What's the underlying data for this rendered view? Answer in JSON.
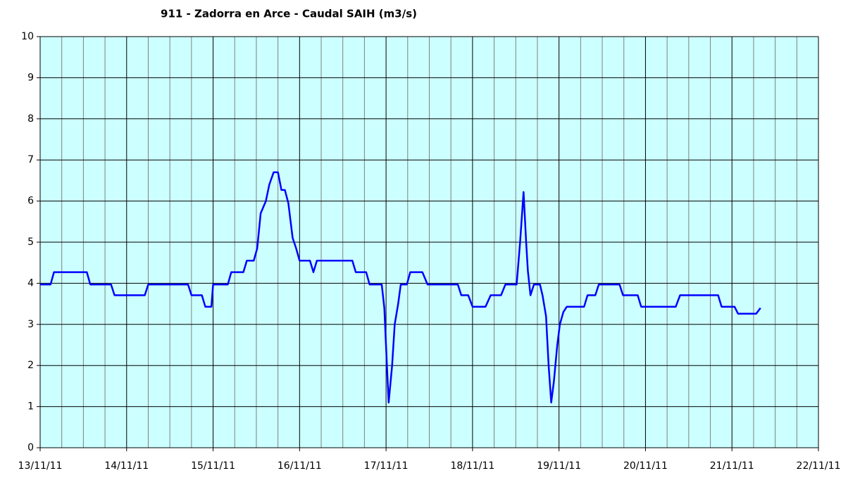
{
  "chart_data": {
    "type": "line",
    "title": "911 - Zadorra en Arce - Caudal SAIH (m3/s)",
    "xlim": [
      0,
      9
    ],
    "xticks": [
      {
        "value": 0,
        "label": "13/11/11"
      },
      {
        "value": 1,
        "label": "14/11/11"
      },
      {
        "value": 2,
        "label": "15/11/11"
      },
      {
        "value": 3,
        "label": "16/11/11"
      },
      {
        "value": 4,
        "label": "17/11/11"
      },
      {
        "value": 5,
        "label": "18/11/11"
      },
      {
        "value": 6,
        "label": "19/11/11"
      },
      {
        "value": 7,
        "label": "20/11/11"
      },
      {
        "value": 8,
        "label": "21/11/11"
      },
      {
        "value": 9,
        "label": "22/11/11"
      }
    ],
    "ylim": [
      0,
      10
    ],
    "yticks": [
      0,
      1,
      2,
      3,
      4,
      5,
      6,
      7,
      8,
      9,
      10
    ],
    "grid": true,
    "background": "#ccffff",
    "series": [
      {
        "color": "#0000ff",
        "x": [
          0,
          0.12,
          0.16,
          0.54,
          0.58,
          0.82,
          0.86,
          1.21,
          1.25,
          1.71,
          1.75,
          1.87,
          1.91,
          1.98,
          2.0,
          2.17,
          2.21,
          2.35,
          2.39,
          2.47,
          2.51,
          2.55,
          2.61,
          2.65,
          2.7,
          2.75,
          2.79,
          2.83,
          2.87,
          2.92,
          2.96,
          3.0,
          3.12,
          3.16,
          3.2,
          3.61,
          3.65,
          3.77,
          3.81,
          3.95,
          3.98,
          4.01,
          4.03,
          4.07,
          4.1,
          4.14,
          4.17,
          4.24,
          4.28,
          4.42,
          4.48,
          4.83,
          4.87,
          4.95,
          5.0,
          5.15,
          5.21,
          5.33,
          5.38,
          5.51,
          5.55,
          5.59,
          5.62,
          5.64,
          5.67,
          5.71,
          5.78,
          5.81,
          5.85,
          5.88,
          5.91,
          5.94,
          5.98,
          6.01,
          6.05,
          6.09,
          6.29,
          6.33,
          6.42,
          6.46,
          6.7,
          6.74,
          6.91,
          6.95,
          7.35,
          7.4,
          7.84,
          7.88,
          8.03,
          8.07,
          8.28,
          8.33
        ],
        "values": [
          3.97,
          3.97,
          4.27,
          4.27,
          3.97,
          3.97,
          3.71,
          3.71,
          3.97,
          3.97,
          3.71,
          3.71,
          3.43,
          3.43,
          3.97,
          3.97,
          4.27,
          4.27,
          4.55,
          4.55,
          4.85,
          5.7,
          6.0,
          6.4,
          6.7,
          6.7,
          6.27,
          6.27,
          5.95,
          5.1,
          4.85,
          4.55,
          4.55,
          4.27,
          4.55,
          4.55,
          4.27,
          4.27,
          3.97,
          3.97,
          3.4,
          2.0,
          1.1,
          2.0,
          3.0,
          3.5,
          3.97,
          3.97,
          4.27,
          4.27,
          3.97,
          3.97,
          3.71,
          3.71,
          3.43,
          3.43,
          3.71,
          3.71,
          3.97,
          3.97,
          5.0,
          6.22,
          5.0,
          4.3,
          3.71,
          3.97,
          3.97,
          3.7,
          3.2,
          2.0,
          1.1,
          1.6,
          2.5,
          3.0,
          3.3,
          3.43,
          3.43,
          3.71,
          3.71,
          3.97,
          3.97,
          3.71,
          3.71,
          3.43,
          3.43,
          3.71,
          3.71,
          3.43,
          3.43,
          3.26,
          3.26,
          3.4
        ]
      }
    ]
  }
}
